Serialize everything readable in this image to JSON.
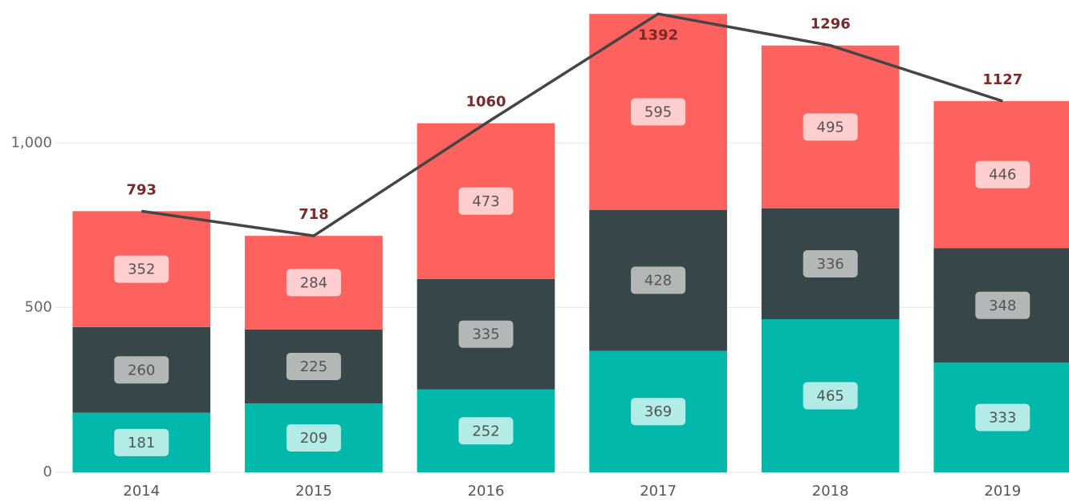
{
  "chart_data": {
    "type": "bar",
    "categories": [
      "2014",
      "2015",
      "2016",
      "2017",
      "2018",
      "2019"
    ],
    "series": [
      {
        "color": "#01b8aa",
        "label_box": "#b3ebe6",
        "values": [
          181,
          209,
          252,
          369,
          465,
          333
        ]
      },
      {
        "color": "#374649",
        "label_box": "#b4b7b8",
        "values": [
          260,
          225,
          335,
          428,
          336,
          348
        ]
      },
      {
        "color": "#fd625e",
        "label_box": "#fecfce",
        "values": [
          352,
          284,
          473,
          595,
          495,
          446
        ]
      }
    ],
    "totals": {
      "type": "line",
      "color": "#454545",
      "label_color": "#7b2a2a",
      "values": [
        793,
        718,
        1060,
        1392,
        1296,
        1127
      ]
    },
    "stacked": true,
    "ylim": [
      0,
      1400
    ],
    "yticks": [
      0,
      500,
      {
        "value": 1000,
        "label": "1,000"
      }
    ],
    "grid": true
  }
}
